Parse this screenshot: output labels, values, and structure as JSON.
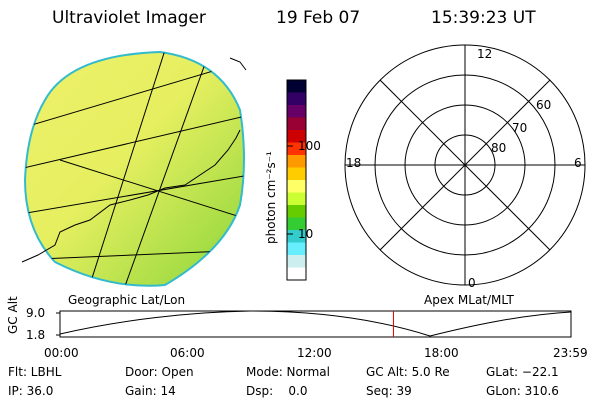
{
  "header": {
    "title": "Ultraviolet Imager",
    "date": "19 Feb 07",
    "time": "15:39:23 UT"
  },
  "colorbar": {
    "unit": "photon cm⁻²s⁻¹",
    "ticks": [
      "100",
      "10"
    ],
    "colors": [
      "#000033",
      "#330066",
      "#660066",
      "#990033",
      "#cc0000",
      "#ff3300",
      "#ff9900",
      "#ffcc00",
      "#ffff66",
      "#ccff33",
      "#66cc00",
      "#33cc33",
      "#33cccc",
      "#66eeff",
      "#cceeee",
      "#ffffff"
    ]
  },
  "left_panel": {
    "caption": "Geographic Lat/Lon",
    "fill_top": "#eef06a",
    "fill_bottom": "#8ad53a"
  },
  "polar_plot": {
    "caption": "Apex MLat/MLT",
    "mlt_labels": {
      "top": "12",
      "left": "18",
      "right": "6",
      "bottom": "0"
    },
    "lat_labels": [
      "60",
      "70",
      "80"
    ]
  },
  "timeline": {
    "ylabel": "GC Alt",
    "ymax": "9.0",
    "ymin": "1.8",
    "xticks": [
      "00:00",
      "06:00",
      "12:00",
      "18:00",
      "23:59"
    ],
    "marker_time": "15:39",
    "marker_color": "#dd0000"
  },
  "info": {
    "flt": "Flt: LBHL",
    "door": "Door: Open",
    "mode": "Mode: Normal",
    "gc_alt": "GC Alt: 5.0 Re",
    "glat": "GLat: −22.1",
    "ip": "IP: 36.0",
    "gain": "Gain: 14",
    "dsp": "Dsp:    0.0",
    "seq": "Seq: 39",
    "glon": "GLon: 310.6"
  }
}
